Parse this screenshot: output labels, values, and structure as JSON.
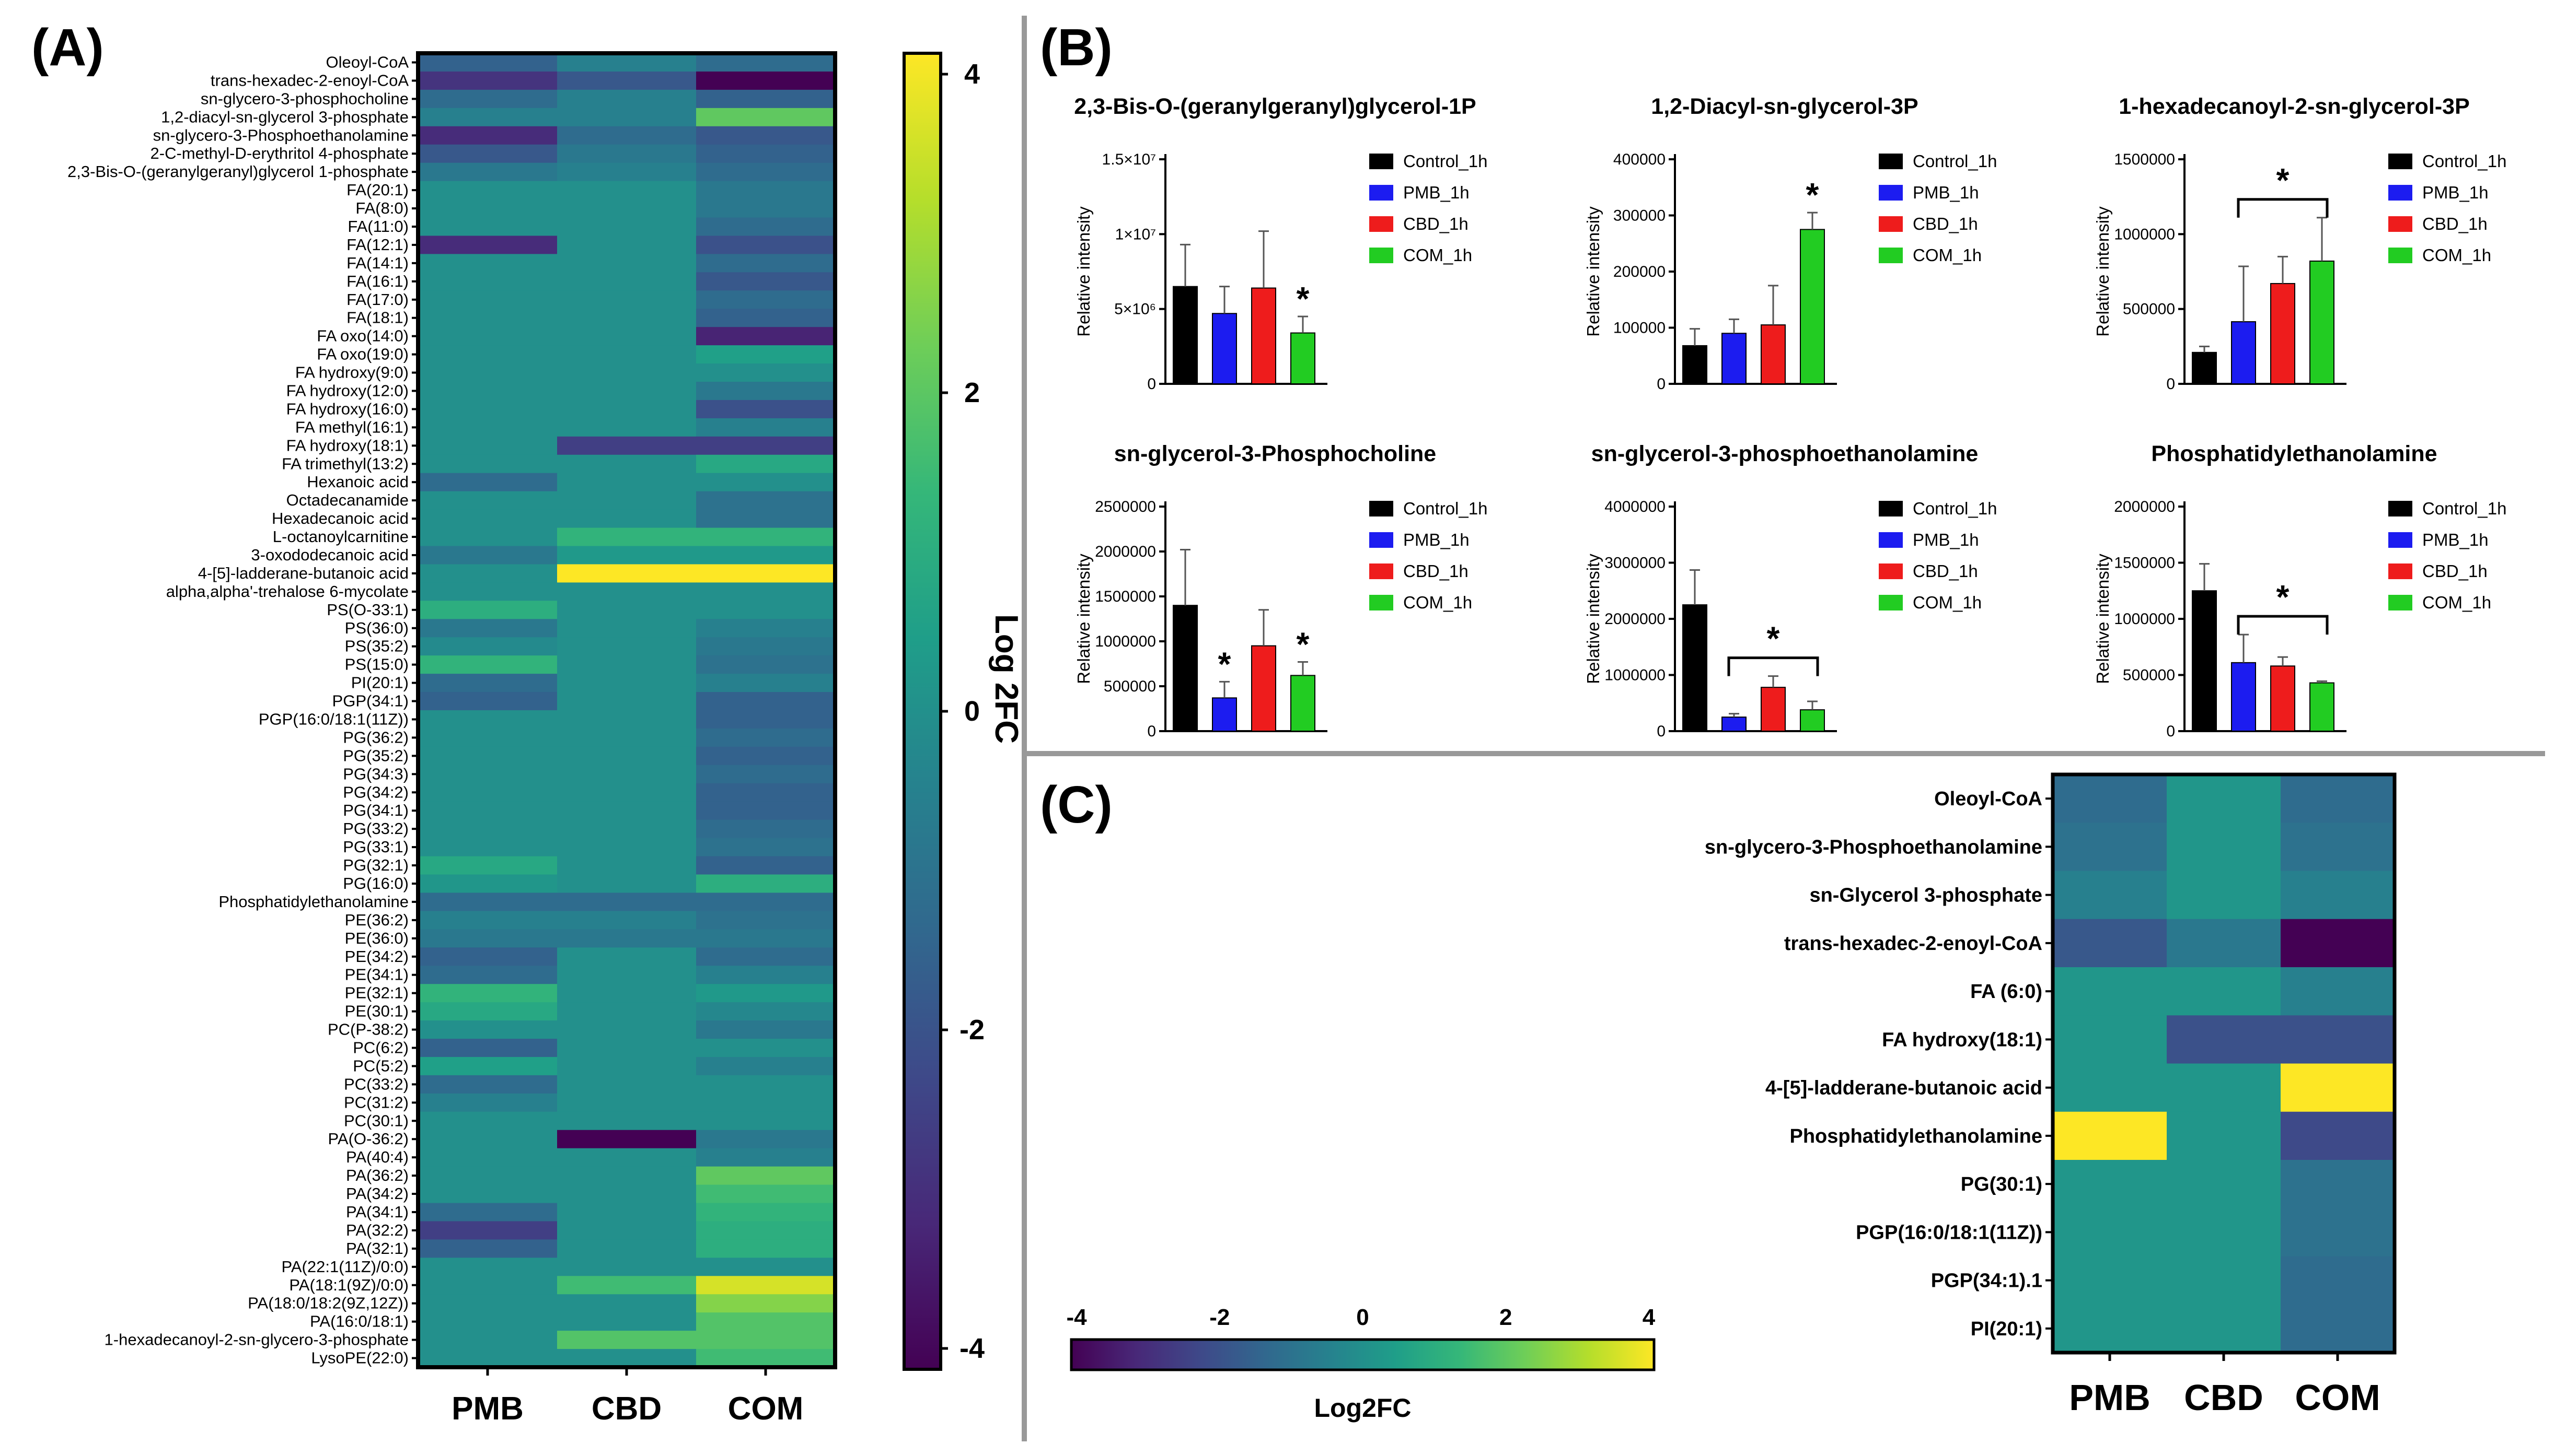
{
  "panels": {
    "a_label": "(A)",
    "b_label": "(B)",
    "c_label": "(C)"
  },
  "palette": {
    "viridis": [
      "#440154",
      "#482878",
      "#3e4989",
      "#31688e",
      "#26828e",
      "#1f9e89",
      "#35b779",
      "#6ece58",
      "#b5de2b",
      "#fde725"
    ],
    "control": "#000000",
    "pmb": "#1c1cf0",
    "cbd": "#ee1c1c",
    "com": "#22cc22",
    "divider": "#999999"
  },
  "chart_data": [
    {
      "id": "A",
      "type": "heatmap",
      "columns": [
        "PMB",
        "CBD",
        "COM"
      ],
      "rows": [
        "Oleoyl-CoA",
        "trans-hexadec-2-enoyl-CoA",
        "sn-glycero-3-phosphocholine",
        "1,2-diacyl-sn-glycerol 3-phosphate",
        "sn-glycero-3-Phosphoethanolamine",
        "2-C-methyl-D-erythritol 4-phosphate",
        "2,3-Bis-O-(geranylgeranyl)glycerol 1-phosphate",
        "FA(20:1)",
        "FA(8:0)",
        "FA(11:0)",
        "FA(12:1)",
        "FA(14:1)",
        "FA(16:1)",
        "FA(17:0)",
        "FA(18:1)",
        "FA oxo(14:0)",
        "FA oxo(19:0)",
        "FA hydroxy(9:0)",
        "FA hydroxy(12:0)",
        "FA hydroxy(16:0)",
        "FA methyl(16:1)",
        "FA hydroxy(18:1)",
        "FA trimethyl(13:2)",
        "Hexanoic acid",
        "Octadecanamide",
        "Hexadecanoic acid",
        "L-octanoylcarnitine",
        "3-oxododecanoic acid",
        "4-[5]-ladderane-butanoic acid",
        "alpha,alpha'-trehalose 6-mycolate",
        "PS(O-33:1)",
        "PS(36:0)",
        "PS(35:2)",
        "PS(15:0)",
        "PI(20:1)",
        "PGP(34:1)",
        "PGP(16:0/18:1(11Z))",
        "PG(36:2)",
        "PG(35:2)",
        "PG(34:3)",
        "PG(34:2)",
        "PG(34:1)",
        "PG(33:2)",
        "PG(33:1)",
        "PG(32:1)",
        "PG(16:0)",
        "Phosphatidylethanolamine",
        "PE(36:2)",
        "PE(36:0)",
        "PE(34:2)",
        "PE(34:1)",
        "PE(32:1)",
        "PE(30:1)",
        "PC(P-38:2)",
        "PC(6:2)",
        "PC(5:2)",
        "PC(33:2)",
        "PC(31:2)",
        "PC(30:1)",
        "PA(O-36:2)",
        "PA(40:4)",
        "PA(36:2)",
        "PA(34:2)",
        "PA(34:1)",
        "PA(32:2)",
        "PA(32:1)",
        "PA(22:1(11Z)/0:0)",
        "PA(18:1(9Z)/0:0)",
        "PA(18:0/18:2(9Z,12Z))",
        "PA(16:0/18:1)",
        "1-hexadecanoyl-2-sn-glycero-3-phosphate",
        "LysoPE(22:0)"
      ],
      "values": [
        [
          -1.5,
          -0.5,
          -1.2
        ],
        [
          -2.8,
          -1.8,
          -4.0
        ],
        [
          -1.2,
          -0.5,
          -1.5
        ],
        [
          -0.5,
          -0.5,
          2.0
        ],
        [
          -3.0,
          -1.2,
          -1.8
        ],
        [
          -1.8,
          -0.8,
          -1.5
        ],
        [
          -0.8,
          -0.5,
          -1.2
        ],
        [
          0,
          0,
          -0.8
        ],
        [
          0,
          0,
          -0.8
        ],
        [
          0,
          0,
          -1.2
        ],
        [
          -3.0,
          0,
          -2.0
        ],
        [
          0,
          0,
          -1.2
        ],
        [
          0,
          0,
          -1.8
        ],
        [
          0,
          0,
          -1.2
        ],
        [
          0,
          0,
          -1.5
        ],
        [
          0,
          0,
          -3.2
        ],
        [
          0,
          0,
          0.5
        ],
        [
          0,
          0,
          0
        ],
        [
          0,
          0,
          -0.8
        ],
        [
          0,
          0,
          -2.0
        ],
        [
          0,
          0,
          -0.5
        ],
        [
          0,
          -2.5,
          -2.5
        ],
        [
          0,
          0,
          0.8
        ],
        [
          -1.2,
          0,
          0
        ],
        [
          0,
          0,
          -1.0
        ],
        [
          0,
          0,
          -1.0
        ],
        [
          0,
          1.2,
          1.2
        ],
        [
          -0.8,
          0.3,
          0.3
        ],
        [
          0,
          4.0,
          4.0
        ],
        [
          0,
          0,
          0
        ],
        [
          1.0,
          0,
          0
        ],
        [
          -0.8,
          0,
          -0.5
        ],
        [
          -0.2,
          0,
          -0.8
        ],
        [
          1.2,
          0,
          -1.0
        ],
        [
          -1.2,
          0,
          -0.5
        ],
        [
          -1.5,
          0,
          -1.5
        ],
        [
          0,
          0,
          -1.5
        ],
        [
          0,
          0,
          -1.2
        ],
        [
          0,
          0,
          -1.5
        ],
        [
          0,
          0,
          -1.2
        ],
        [
          0,
          0,
          -1.5
        ],
        [
          0,
          0,
          -1.5
        ],
        [
          0,
          0,
          -1.2
        ],
        [
          0,
          0,
          -1.0
        ],
        [
          0.8,
          0,
          -1.5
        ],
        [
          0.2,
          0,
          1.0
        ],
        [
          -1.2,
          -1.2,
          -1.2
        ],
        [
          -0.5,
          -0.5,
          -1.0
        ],
        [
          -0.8,
          -0.8,
          -0.8
        ],
        [
          -1.5,
          0,
          -1.2
        ],
        [
          -1.2,
          0,
          -0.5
        ],
        [
          1.2,
          0,
          0.3
        ],
        [
          0.8,
          0,
          -0.3
        ],
        [
          0,
          0,
          -0.8
        ],
        [
          -1.5,
          0,
          0
        ],
        [
          0.5,
          0,
          -0.5
        ],
        [
          -1.2,
          0,
          0
        ],
        [
          -0.5,
          0,
          0
        ],
        [
          0,
          0,
          0
        ],
        [
          0,
          -4.0,
          -0.8
        ],
        [
          0,
          0,
          -0.5
        ],
        [
          0,
          0,
          2.0
        ],
        [
          0,
          0,
          1.5
        ],
        [
          -1.2,
          0,
          1.2
        ],
        [
          -2.5,
          0,
          1.0
        ],
        [
          -1.5,
          0,
          1.0
        ],
        [
          0,
          0,
          0
        ],
        [
          0,
          1.5,
          3.5
        ],
        [
          0,
          0,
          2.5
        ],
        [
          0,
          0,
          1.8
        ],
        [
          0,
          1.8,
          1.8
        ],
        [
          0,
          0,
          1.5
        ]
      ],
      "colorbar": {
        "label": "Log 2FC",
        "ticks": [
          "4",
          "2",
          "0",
          "-2",
          "-4"
        ],
        "range": [
          -4,
          4
        ]
      }
    },
    {
      "id": "B",
      "type": "bar",
      "legend": [
        "Control_1h",
        "PMB_1h",
        "CBD_1h",
        "COM_1h"
      ],
      "ylabel": "Relative intensity",
      "subplots": [
        {
          "title": "2,3-Bis-O-(geranylgeranyl)glycerol-1P",
          "ymax": 15000000,
          "ticks": [
            "0",
            "5×10⁶",
            "1×10⁷",
            "1.5×10⁷"
          ],
          "tick_values": [
            0,
            5000000,
            10000000,
            15000000
          ],
          "values": [
            6500000,
            4700000,
            6400000,
            3400000
          ],
          "errors": [
            2800000,
            1800000,
            3800000,
            1100000
          ],
          "annotations": [
            {
              "type": "star",
              "bar": 3,
              "text": "*"
            }
          ]
        },
        {
          "title": "1,2-Diacyl-sn-glycerol-3P",
          "ymax": 400000,
          "ticks": [
            "0",
            "100000",
            "200000",
            "300000",
            "400000"
          ],
          "tick_values": [
            0,
            100000,
            200000,
            300000,
            400000
          ],
          "values": [
            68000,
            90000,
            105000,
            275000
          ],
          "errors": [
            30000,
            25000,
            70000,
            30000
          ],
          "annotations": [
            {
              "type": "star",
              "bar": 3,
              "text": "*"
            }
          ]
        },
        {
          "title": "1-hexadecanoyl-2-sn-glycerol-3P",
          "ymax": 1500000,
          "ticks": [
            "0",
            "500000",
            "1000000",
            "1500000"
          ],
          "tick_values": [
            0,
            500000,
            1000000,
            1500000
          ],
          "values": [
            210000,
            415000,
            670000,
            820000
          ],
          "errors": [
            40000,
            370000,
            180000,
            290000
          ],
          "annotations": [
            {
              "type": "bracket",
              "from": 1,
              "to": 3,
              "text": "*"
            }
          ]
        },
        {
          "title": "sn-glycerol-3-Phosphocholine",
          "ymax": 2500000,
          "ticks": [
            "0",
            "500000",
            "1000000",
            "1500000",
            "2000000",
            "2500000"
          ],
          "tick_values": [
            0,
            500000,
            1000000,
            1500000,
            2000000,
            2500000
          ],
          "values": [
            1400000,
            370000,
            950000,
            620000
          ],
          "errors": [
            620000,
            180000,
            400000,
            150000
          ],
          "annotations": [
            {
              "type": "star",
              "bar": 1,
              "text": "*"
            },
            {
              "type": "star",
              "bar": 3,
              "text": "*"
            }
          ]
        },
        {
          "title": "sn-glycerol-3-phosphoethanolamine",
          "ymax": 4000000,
          "ticks": [
            "0",
            "1000000",
            "2000000",
            "3000000",
            "4000000"
          ],
          "tick_values": [
            0,
            1000000,
            2000000,
            3000000,
            4000000
          ],
          "values": [
            2250000,
            250000,
            780000,
            380000
          ],
          "errors": [
            620000,
            60000,
            200000,
            150000
          ],
          "annotations": [
            {
              "type": "bracket",
              "from": 1,
              "to": 3,
              "text": "*"
            }
          ]
        },
        {
          "title": "Phosphatidylethanolamine",
          "ymax": 2000000,
          "ticks": [
            "0",
            "500000",
            "1000000",
            "1500000",
            "2000000"
          ],
          "tick_values": [
            0,
            500000,
            1000000,
            1500000,
            2000000
          ],
          "values": [
            1250000,
            610000,
            580000,
            430000
          ],
          "errors": [
            240000,
            250000,
            80000,
            15000
          ],
          "annotations": [
            {
              "type": "bracket",
              "from": 1,
              "to": 3,
              "text": "*"
            }
          ]
        }
      ]
    },
    {
      "id": "C",
      "type": "heatmap",
      "columns": [
        "PMB",
        "CBD",
        "COM"
      ],
      "rows": [
        "Oleoyl-CoA",
        "sn-glycero-3-Phosphoethanolamine",
        "sn-Glycerol 3-phosphate",
        "trans-hexadec-2-enoyl-CoA",
        "FA (6:0)",
        "FA hydroxy(18:1)",
        "4-[5]-ladderane-butanoic acid",
        "Phosphatidylethanolamine",
        "PG(30:1)",
        "PGP(16:0/18:1(11Z))",
        "PGP(34:1).1",
        "PI(20:1)"
      ],
      "values": [
        [
          -1.2,
          0.2,
          -1.2
        ],
        [
          -1.0,
          0.2,
          -1.0
        ],
        [
          -0.5,
          0.2,
          -0.5
        ],
        [
          -1.8,
          -0.8,
          -4.0
        ],
        [
          0.2,
          0.2,
          -0.5
        ],
        [
          0.2,
          -2.0,
          -2.0
        ],
        [
          0.2,
          0.2,
          4.0
        ],
        [
          4.0,
          0.2,
          -2.2
        ],
        [
          0.2,
          0.2,
          -1.0
        ],
        [
          0.2,
          0.2,
          -1.0
        ],
        [
          0.2,
          0.2,
          -1.2
        ],
        [
          0.2,
          0.2,
          -1.2
        ]
      ],
      "colorbar": {
        "label": "Log2FC",
        "ticks": [
          "-4",
          "-2",
          "0",
          "2",
          "4"
        ],
        "range": [
          -4,
          4
        ]
      }
    }
  ]
}
